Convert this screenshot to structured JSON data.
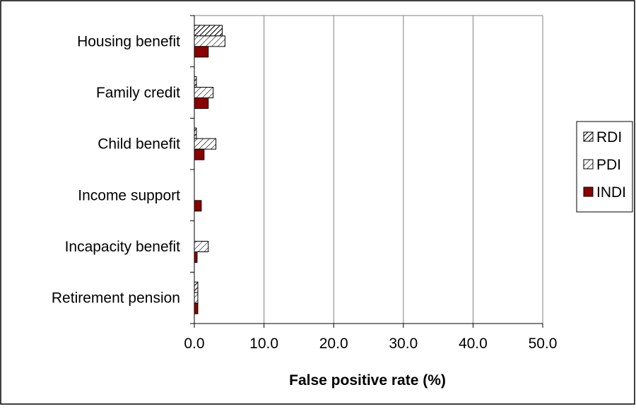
{
  "chart_data": {
    "type": "bar",
    "orientation": "horizontal",
    "categories": [
      "Housing benefit",
      "Family credit",
      "Child benefit",
      "Income support",
      "Incapacity benefit",
      "Retirement pension"
    ],
    "series": [
      {
        "name": "RDI",
        "pattern": "cross-hatch",
        "values": [
          4.0,
          0.3,
          0.3,
          0.0,
          0.0,
          0.5
        ]
      },
      {
        "name": "PDI",
        "pattern": "diagonal-hatch",
        "values": [
          4.4,
          2.7,
          3.1,
          0.0,
          2.0,
          0.5
        ]
      },
      {
        "name": "INDI",
        "color": "#8b0000",
        "values": [
          2.0,
          2.0,
          1.4,
          1.0,
          0.4,
          0.5
        ]
      }
    ],
    "xlabel": "False positive rate (%)",
    "ylabel": "",
    "xlim": [
      0,
      50
    ],
    "xticks": [
      "0.0",
      "10.0",
      "20.0",
      "30.0",
      "40.0",
      "50.0"
    ],
    "grid": "vertical",
    "legend": "right"
  }
}
